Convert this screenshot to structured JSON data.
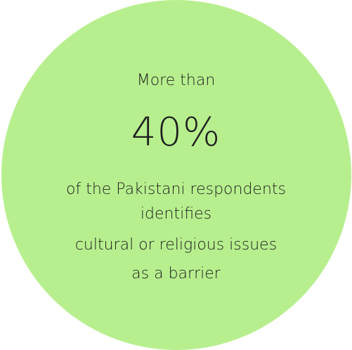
{
  "circle": {
    "color": "#b7ef8e"
  },
  "stat": {
    "lead": "More than",
    "value": "40%",
    "description_lines": [
      "of the Pakistani respondents",
      "identifies",
      "cultural or religious issues",
      "as a barrier"
    ]
  }
}
